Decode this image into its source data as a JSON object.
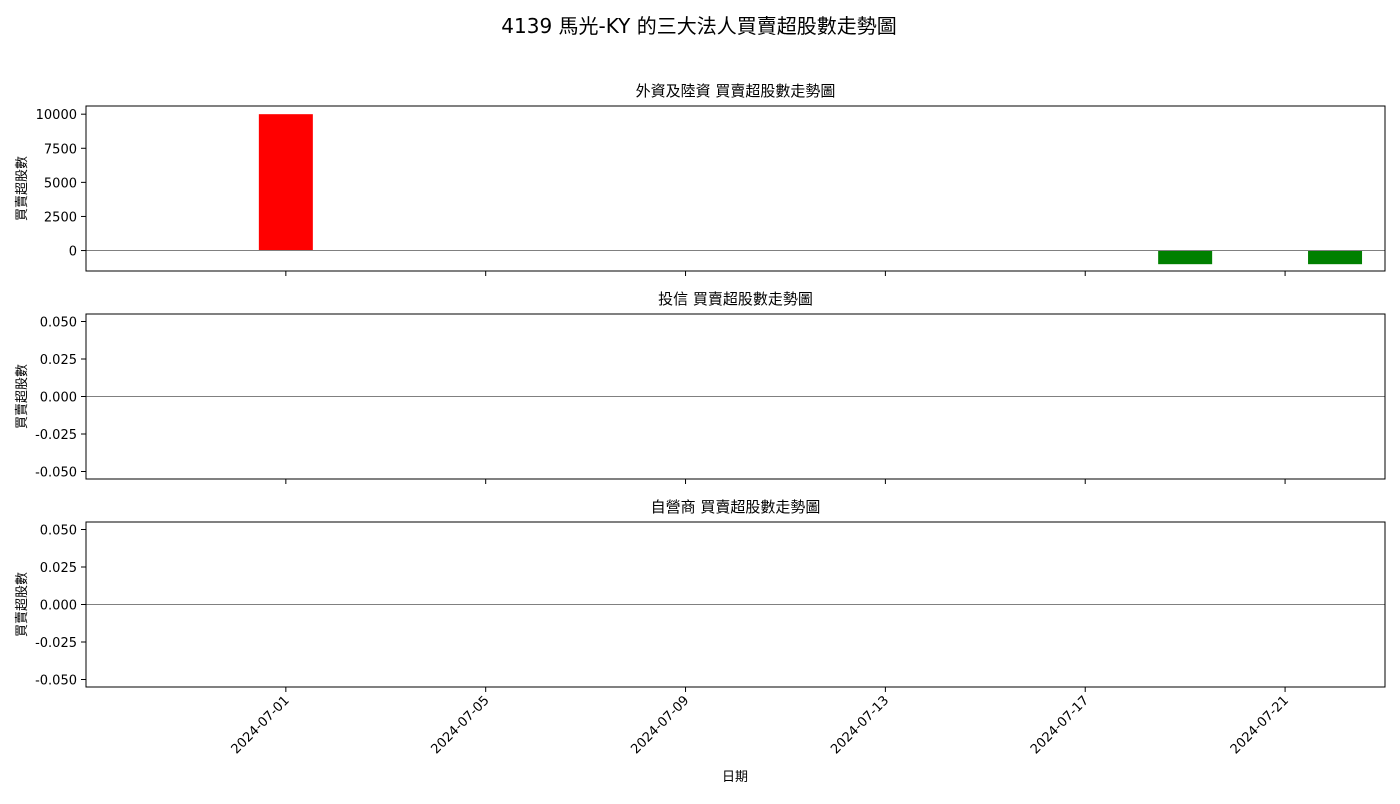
{
  "chart_data": {
    "type": "bar",
    "title": "4139 馬光-KY 的三大法人買賣超股數走勢圖",
    "xlabel": "日期",
    "x_ticks": [
      "2024-07-01",
      "2024-07-05",
      "2024-07-09",
      "2024-07-13",
      "2024-07-17",
      "2024-07-21"
    ],
    "x_range": [
      "2024-06-27",
      "2024-07-23"
    ],
    "positive_color": "#ff0000",
    "negative_color": "#008000",
    "zero_line_color": "#808080",
    "subplots": [
      {
        "title": "外資及陸資 買賣超股數走勢圖",
        "ylabel": "買賣超股數",
        "ylim": [
          -1500,
          10600
        ],
        "y_ticks": [
          "10000",
          "7500",
          "5000",
          "2500",
          "0"
        ],
        "y_tick_values": [
          10000,
          7500,
          5000,
          2500,
          0
        ],
        "bars": [
          {
            "date": "2024-07-01",
            "value": 10000
          },
          {
            "date": "2024-07-19",
            "value": -1000
          },
          {
            "date": "2024-07-22",
            "value": -1000
          }
        ]
      },
      {
        "title": "投信 買賣超股數走勢圖",
        "ylabel": "買賣超股數",
        "ylim": [
          -0.055,
          0.055
        ],
        "y_ticks": [
          "0.050",
          "0.025",
          "0.000",
          "-0.025",
          "-0.050"
        ],
        "y_tick_values": [
          0.05,
          0.025,
          0,
          -0.025,
          -0.05
        ],
        "bars": []
      },
      {
        "title": "自營商 買賣超股數走勢圖",
        "ylabel": "買賣超股數",
        "ylim": [
          -0.055,
          0.055
        ],
        "y_ticks": [
          "0.050",
          "0.025",
          "0.000",
          "-0.025",
          "-0.050"
        ],
        "y_tick_values": [
          0.05,
          0.025,
          0,
          -0.025,
          -0.05
        ],
        "bars": []
      }
    ]
  }
}
